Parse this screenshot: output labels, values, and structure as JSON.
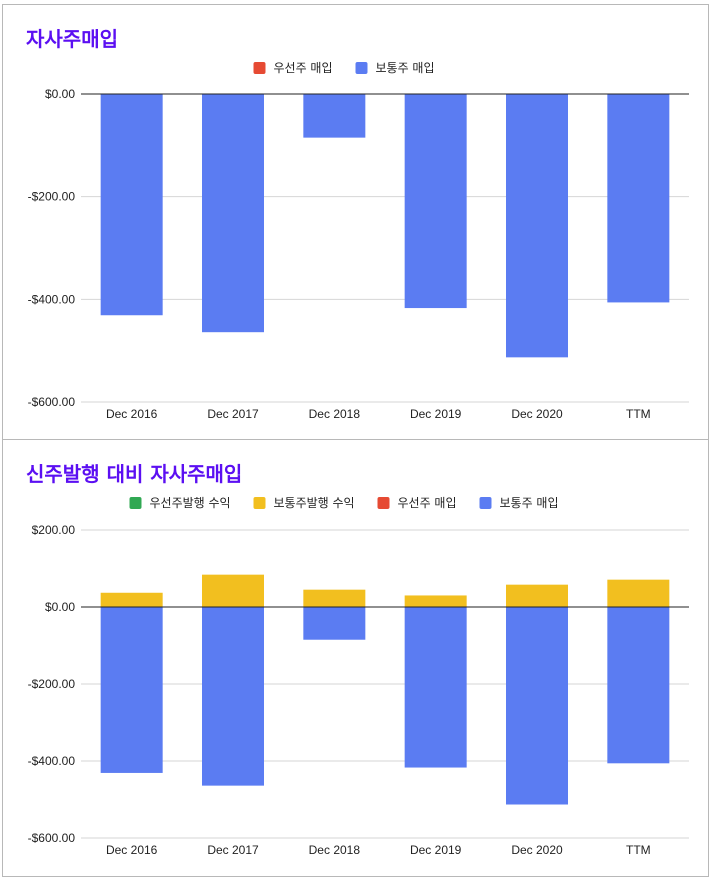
{
  "chart_data": [
    {
      "type": "bar",
      "stacked": true,
      "title": "자사주매입",
      "categories": [
        "Dec 2016",
        "Dec 2017",
        "Dec 2018",
        "Dec 2019",
        "Dec 2020",
        "TTM"
      ],
      "series": [
        {
          "name": "우선주 매입",
          "color": "#e64a33",
          "values": [
            0,
            0,
            0,
            0,
            0,
            0
          ]
        },
        {
          "name": "보통주 매입",
          "color": "#5b7cf2",
          "values": [
            -431,
            -464,
            -85,
            -417,
            -513,
            -406
          ]
        }
      ],
      "ylim": [
        -600,
        0
      ],
      "yticks": [
        0,
        -200,
        -400,
        -600
      ],
      "ytick_labels": [
        "$0.00",
        "-$200.00",
        "-$400.00",
        "-$600.00"
      ],
      "legend": "top",
      "grid": true
    },
    {
      "type": "bar",
      "stacked": true,
      "title": "신주발행 대비 자사주매입",
      "categories": [
        "Dec 2016",
        "Dec 2017",
        "Dec 2018",
        "Dec 2019",
        "Dec 2020",
        "TTM"
      ],
      "series": [
        {
          "name": "우선주발행 수익",
          "color": "#31a853",
          "values": [
            0,
            0,
            0,
            0,
            0,
            0
          ]
        },
        {
          "name": "보통주발행 수익",
          "color": "#f2bf1f",
          "values": [
            37,
            84,
            45,
            30,
            58,
            71
          ]
        },
        {
          "name": "우선주 매입",
          "color": "#e64a33",
          "values": [
            0,
            0,
            0,
            0,
            0,
            0
          ]
        },
        {
          "name": "보통주 매입",
          "color": "#5b7cf2",
          "values": [
            -431,
            -464,
            -85,
            -417,
            -513,
            -406
          ]
        }
      ],
      "ylim": [
        -600,
        200
      ],
      "yticks": [
        200,
        0,
        -200,
        -400,
        -600
      ],
      "ytick_labels": [
        "$200.00",
        "$0.00",
        "-$200.00",
        "-$400.00",
        "-$600.00"
      ],
      "legend": "top",
      "grid": true
    }
  ]
}
